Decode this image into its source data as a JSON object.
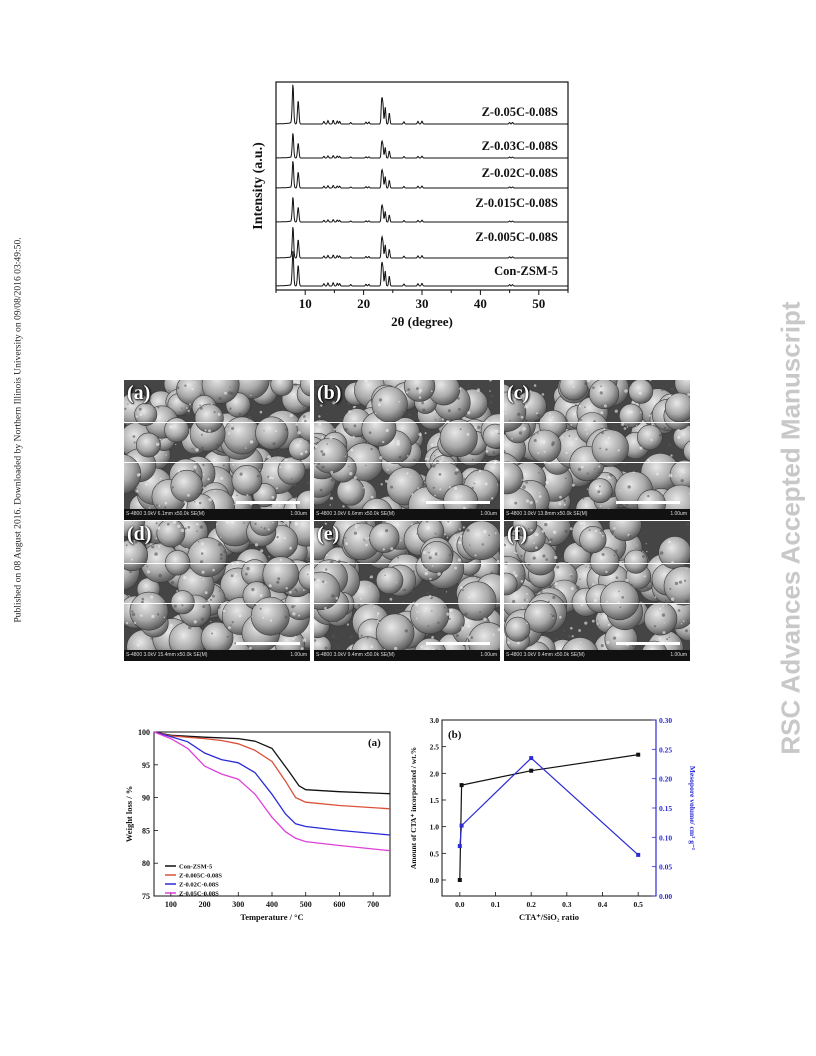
{
  "sidebar_left": "Published on 08 August 2016. Downloaded by Northern Illinois University on 09/08/2016 03:49:50.",
  "sidebar_right": "RSC Advances Accepted Manuscript",
  "colors": {
    "black": "#111111",
    "red": "#d9513a",
    "blue": "#2b2bd6",
    "magenta": "#e040d8",
    "right_axis": "#2b2bd6"
  },
  "xrd": {
    "ylabel": "Intensity (a.u.)",
    "xlabel": "2θ (degree)",
    "x_ticks": [
      "10",
      "20",
      "30",
      "40",
      "50"
    ],
    "samples": [
      "Z-0.05C-0.08S",
      "Z-0.03C-0.08S",
      "Z-0.02C-0.08S",
      "Z-0.015C-0.08S",
      "Z-0.005C-0.08S",
      "Con-ZSM-5"
    ]
  },
  "sem": {
    "panels": [
      {
        "label": "(a)",
        "info": "S-4800 3.0kV 6.1mm x50.0k SE(M)",
        "scale": "1.00um"
      },
      {
        "label": "(b)",
        "info": "S-4800 3.0kV 6.6mm x50.0k SE(M)",
        "scale": "1.00um"
      },
      {
        "label": "(c)",
        "info": "S-4800 3.0kV 13.8mm x50.0k SE(M)",
        "scale": "1.00um"
      },
      {
        "label": "(d)",
        "info": "S-4800 3.0kV 15.4mm x50.0k SE(M)",
        "scale": "1.00um"
      },
      {
        "label": "(e)",
        "info": "S-4800 3.0kV 9.4mm x50.0k SE(M)",
        "scale": "1.00um"
      },
      {
        "label": "(f)",
        "info": "S-4800 3.0kV 9.4mm x50.0k SE(M)",
        "scale": "1.00um"
      }
    ]
  },
  "chart_data": [
    {
      "type": "line",
      "panel": "(a)",
      "xlabel": "Temperature / °C",
      "ylabel": "Weight loss / %",
      "xlim": [
        50,
        750
      ],
      "ylim": [
        75,
        100
      ],
      "x_ticks": [
        "100",
        "200",
        "300",
        "400",
        "500",
        "600",
        "700"
      ],
      "y_ticks": [
        "75",
        "80",
        "85",
        "90",
        "95",
        "100"
      ],
      "legend_position": "bottom-left",
      "series": [
        {
          "name": "Con-ZSM-5",
          "color": "#111111",
          "points": [
            [
              50,
              100
            ],
            [
              100,
              99.5
            ],
            [
              200,
              99.2
            ],
            [
              300,
              99.0
            ],
            [
              350,
              98.6
            ],
            [
              400,
              97.5
            ],
            [
              450,
              94
            ],
            [
              480,
              91.8
            ],
            [
              500,
              91.2
            ],
            [
              600,
              90.9
            ],
            [
              750,
              90.6
            ]
          ]
        },
        {
          "name": "Z-0.005C-0.08S",
          "color": "#d9513a",
          "points": [
            [
              50,
              100
            ],
            [
              100,
              99.4
            ],
            [
              200,
              99.0
            ],
            [
              250,
              98.7
            ],
            [
              300,
              98.2
            ],
            [
              350,
              97.2
            ],
            [
              400,
              95.5
            ],
            [
              440,
              92.5
            ],
            [
              470,
              90.0
            ],
            [
              500,
              89.3
            ],
            [
              600,
              88.8
            ],
            [
              750,
              88.3
            ]
          ]
        },
        {
          "name": "Z-0.02C-0.08S",
          "color": "#2b2bd6",
          "points": [
            [
              50,
              100
            ],
            [
              100,
              99.3
            ],
            [
              150,
              98.5
            ],
            [
              200,
              96.8
            ],
            [
              250,
              95.8
            ],
            [
              300,
              95.3
            ],
            [
              350,
              93.8
            ],
            [
              400,
              90.5
            ],
            [
              440,
              87.5
            ],
            [
              470,
              86.0
            ],
            [
              500,
              85.6
            ],
            [
              600,
              85.0
            ],
            [
              750,
              84.3
            ]
          ]
        },
        {
          "name": "Z-0.05C-0.08S",
          "color": "#e040d8",
          "points": [
            [
              50,
              100
            ],
            [
              100,
              99.0
            ],
            [
              150,
              97.5
            ],
            [
              200,
              94.8
            ],
            [
              250,
              93.6
            ],
            [
              300,
              92.8
            ],
            [
              350,
              90.5
            ],
            [
              400,
              87.0
            ],
            [
              440,
              84.8
            ],
            [
              470,
              83.8
            ],
            [
              500,
              83.3
            ],
            [
              600,
              82.7
            ],
            [
              750,
              81.9
            ]
          ]
        }
      ]
    },
    {
      "type": "line",
      "panel": "(b)",
      "xlabel": "CTA⁺/SiO₂ ratio",
      "ylabel": "Amount of CTA⁺ incorporated / wt.%",
      "y2label": "Mesopore volume/ cm³ g⁻¹",
      "xlim": [
        -0.05,
        0.55
      ],
      "ylim": [
        -0.3,
        3.0
      ],
      "y2lim": [
        0.0,
        0.3
      ],
      "x_ticks": [
        "0.0",
        "0.1",
        "0.2",
        "0.3",
        "0.4",
        "0.5"
      ],
      "y_ticks": [
        "0.0",
        "0.5",
        "1.0",
        "1.5",
        "2.0",
        "2.5",
        "3.0"
      ],
      "y2_ticks": [
        "0.00",
        "0.05",
        "0.10",
        "0.15",
        "0.20",
        "0.25",
        "0.30"
      ],
      "series": [
        {
          "axis": "left",
          "color": "#111111",
          "x": [
            0,
            0.005,
            0.2,
            0.5
          ],
          "y": [
            0.0,
            1.78,
            2.05,
            2.35
          ]
        },
        {
          "axis": "right",
          "color": "#2b2bd6",
          "x": [
            0,
            0.005,
            0.2,
            0.5
          ],
          "y": [
            0.085,
            0.12,
            0.235,
            0.07
          ]
        }
      ]
    }
  ]
}
